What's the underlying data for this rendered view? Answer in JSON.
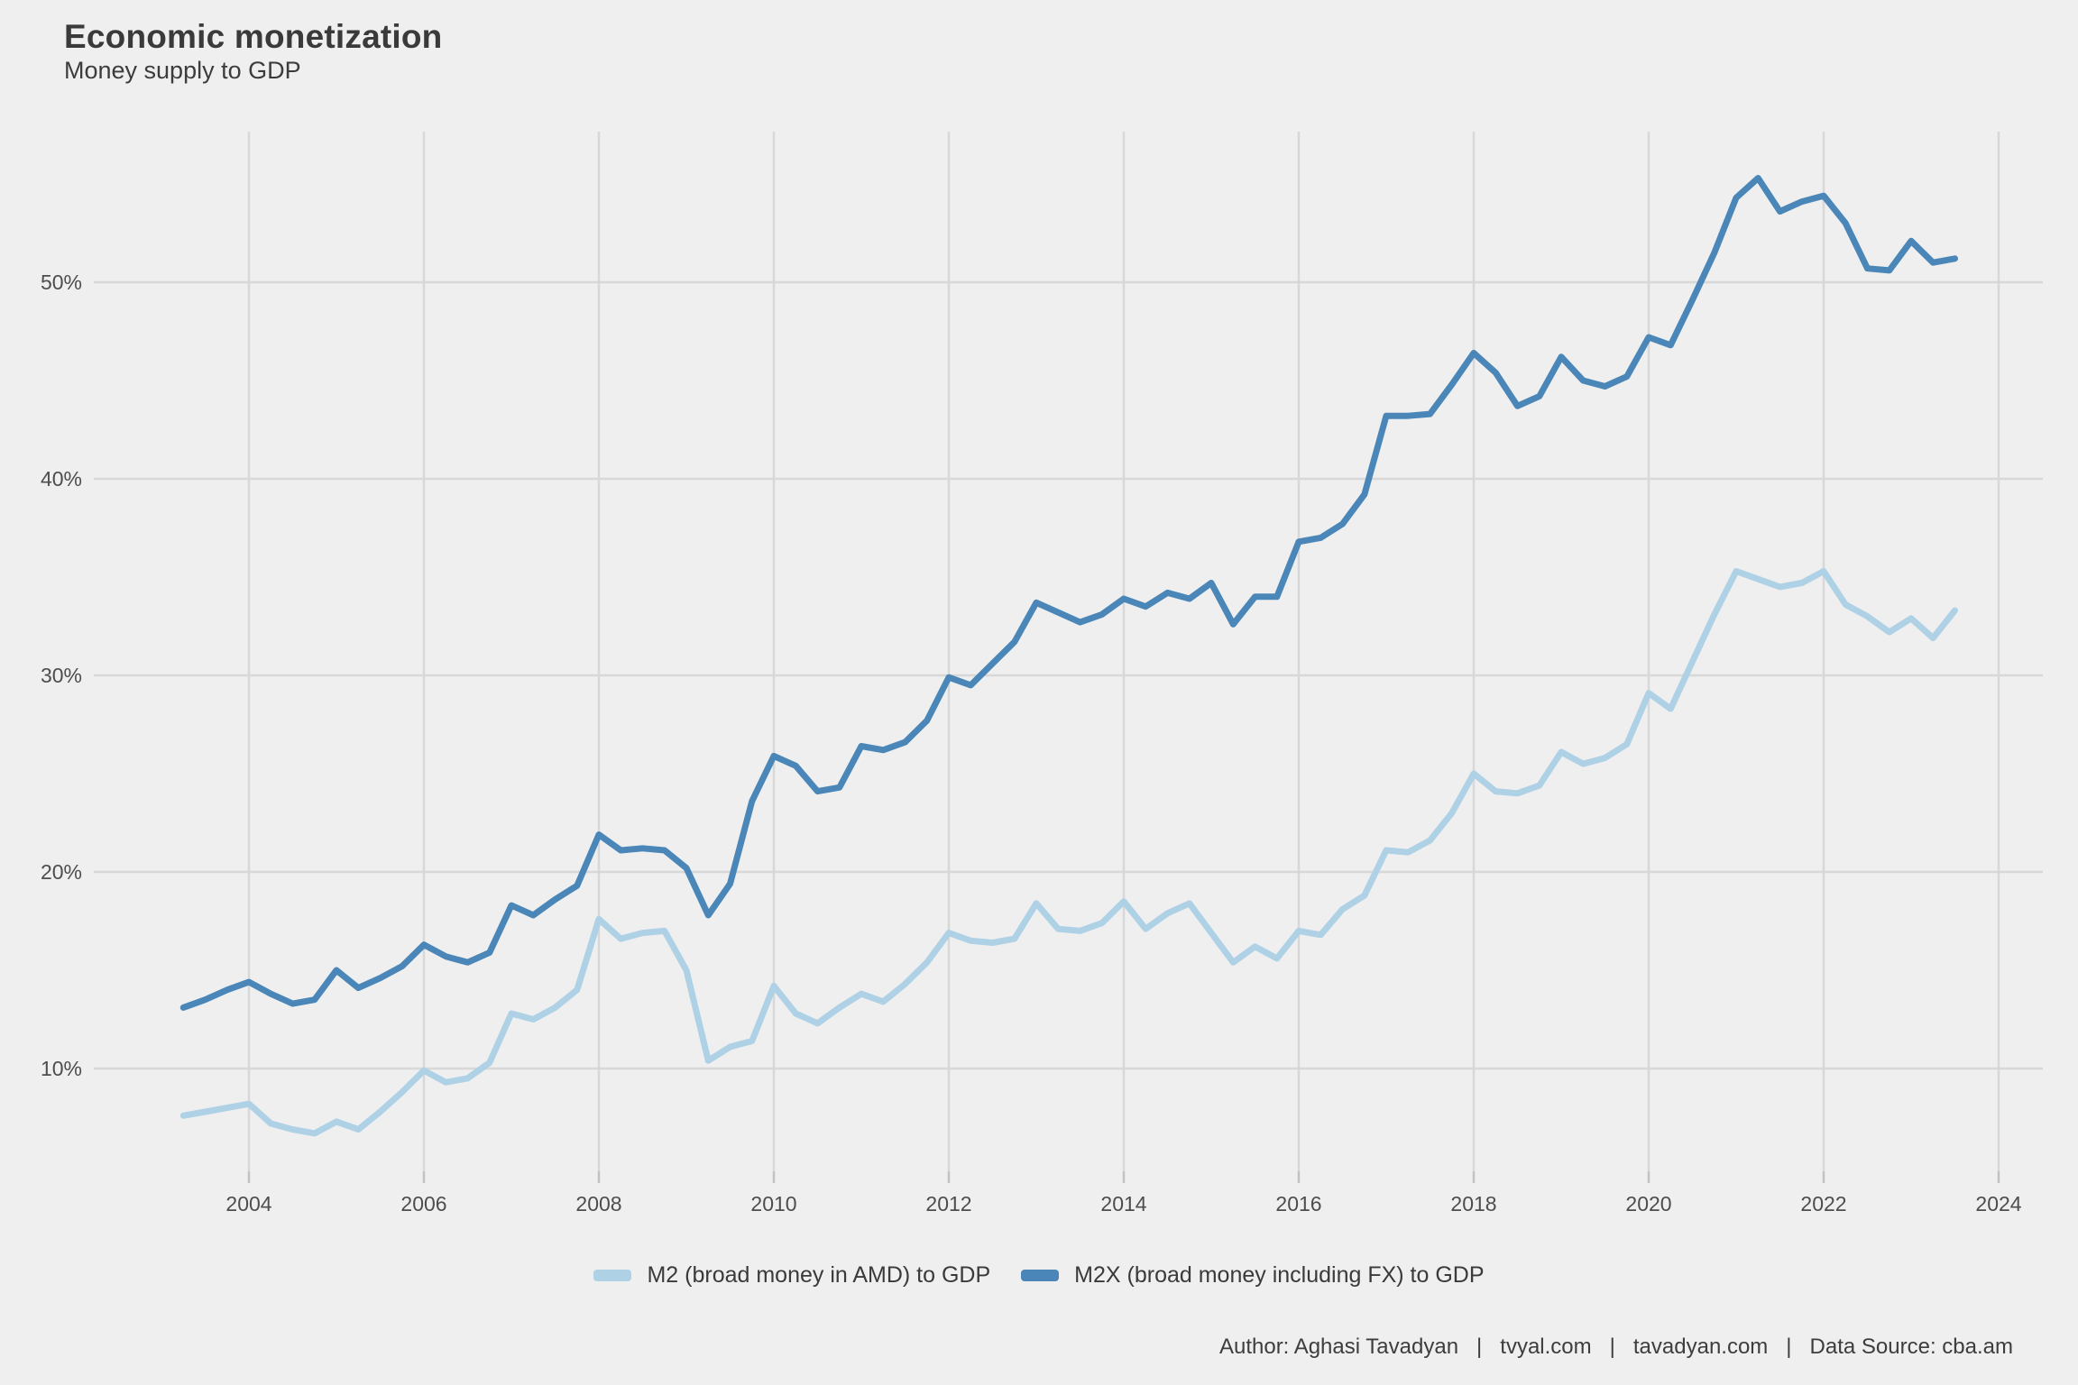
{
  "page": {
    "background": "#efefef"
  },
  "header": {
    "title": "Economic monetization",
    "subtitle": "Money supply to GDP"
  },
  "caption": {
    "text": "Author: Aghasi Tavadyan   |   tvyal.com   |   tavadyan.com   |   Data Source: cba.am"
  },
  "chart_data": {
    "type": "line",
    "title": "Economic monetization",
    "subtitle": "Money supply to GDP",
    "grid": true,
    "legend_position": "bottom",
    "x_start": 2003.25,
    "x_step": 0.25,
    "x_ticks": [
      2004,
      2006,
      2008,
      2010,
      2012,
      2014,
      2016,
      2018,
      2020,
      2022,
      2024
    ],
    "y_ticks": [
      {
        "value": 10,
        "label": "10%"
      },
      {
        "value": 20,
        "label": "20%"
      },
      {
        "value": 30,
        "label": "30%"
      },
      {
        "value": 40,
        "label": "40%"
      },
      {
        "value": 50,
        "label": "50%"
      }
    ],
    "xlim": [
      2002.25,
      2024.5
    ],
    "ylim": [
      4,
      58
    ],
    "colors": {
      "grid": "#d8d8d8",
      "tick": "#c2c2c2",
      "axis_text": "#4d4d4d"
    },
    "series": [
      {
        "name": "M2 (broad money in AMD) to GDP",
        "color": "#aed1e6",
        "values": [
          7.6,
          7.8,
          8.0,
          8.2,
          7.2,
          6.9,
          6.7,
          7.3,
          6.9,
          7.8,
          8.8,
          9.9,
          9.3,
          9.5,
          10.3,
          12.8,
          12.5,
          13.1,
          14.0,
          17.6,
          16.6,
          16.9,
          17.0,
          15.0,
          10.4,
          11.1,
          11.4,
          14.2,
          12.8,
          12.3,
          13.1,
          13.8,
          13.4,
          14.3,
          15.4,
          16.9,
          16.5,
          16.4,
          16.6,
          18.4,
          17.1,
          17.0,
          17.4,
          18.5,
          17.1,
          17.9,
          18.4,
          16.9,
          15.4,
          16.2,
          15.6,
          17.0,
          16.8,
          18.1,
          18.8,
          21.1,
          21.0,
          21.6,
          23.0,
          25.0,
          24.1,
          24.0,
          24.4,
          26.1,
          25.5,
          25.8,
          26.5,
          29.1,
          28.3,
          30.7,
          33.1,
          35.3,
          34.9,
          34.5,
          34.7,
          35.3,
          33.6,
          33.0,
          32.2,
          32.9,
          31.9,
          33.3
        ]
      },
      {
        "name": "M2X (broad money including FX) to GDP",
        "color": "#4a86b8",
        "values": [
          13.1,
          13.5,
          14.0,
          14.4,
          13.8,
          13.3,
          13.5,
          15.0,
          14.1,
          14.6,
          15.2,
          16.3,
          15.7,
          15.4,
          15.9,
          18.3,
          17.8,
          18.6,
          19.3,
          21.9,
          21.1,
          21.2,
          21.1,
          20.2,
          17.8,
          19.4,
          23.6,
          25.9,
          25.4,
          24.1,
          24.3,
          26.4,
          26.2,
          26.6,
          27.7,
          29.9,
          29.5,
          30.6,
          31.7,
          33.7,
          33.2,
          32.7,
          33.1,
          33.9,
          33.5,
          34.2,
          33.9,
          34.7,
          32.6,
          34.0,
          34.0,
          36.8,
          37.0,
          37.7,
          39.2,
          43.2,
          43.2,
          43.3,
          44.8,
          46.4,
          45.4,
          43.7,
          44.2,
          46.2,
          45.0,
          44.7,
          45.2,
          47.2,
          46.8,
          49.1,
          51.5,
          54.3,
          55.3,
          53.6,
          54.1,
          54.4,
          53.0,
          50.7,
          50.6,
          52.1,
          51.0,
          51.2
        ]
      }
    ]
  }
}
